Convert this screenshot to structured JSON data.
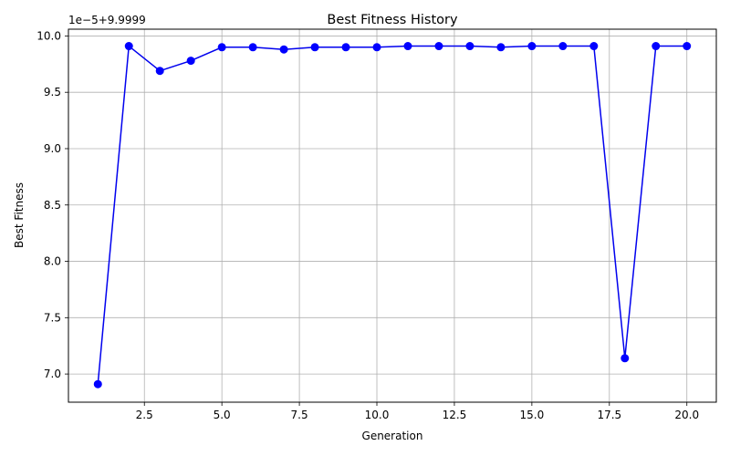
{
  "chart_data": {
    "type": "line",
    "title": "Best Fitness History",
    "xlabel": "Generation",
    "ylabel": "Best Fitness",
    "offset_text": "1e−5+9.9999",
    "grid": true,
    "xlim": [
      0.05,
      20.95
    ],
    "ylim": [
      6.75,
      10.06
    ],
    "xticks": [
      2.5,
      5.0,
      7.5,
      10.0,
      12.5,
      15.0,
      17.5,
      20.0
    ],
    "xtick_labels": [
      "2.5",
      "5.0",
      "7.5",
      "10.0",
      "12.5",
      "15.0",
      "17.5",
      "20.0"
    ],
    "yticks": [
      7.0,
      7.5,
      8.0,
      8.5,
      9.0,
      9.5,
      10.0
    ],
    "ytick_labels": [
      "7.0",
      "7.5",
      "8.0",
      "8.5",
      "9.0",
      "9.5",
      "10.0"
    ],
    "line_color": "#0000ee",
    "marker_color": "#0000ff",
    "series": [
      {
        "x": [
          1,
          2,
          3,
          4,
          5,
          6,
          7,
          8,
          9,
          10,
          11,
          12,
          13,
          14,
          15,
          16,
          17,
          18,
          19,
          20
        ],
        "values": [
          6.91,
          9.91,
          9.69,
          9.78,
          9.9,
          9.9,
          9.88,
          9.9,
          9.9,
          9.9,
          9.91,
          9.91,
          9.91,
          9.9,
          9.91,
          9.91,
          9.91,
          7.14,
          9.91,
          9.91
        ]
      }
    ]
  }
}
